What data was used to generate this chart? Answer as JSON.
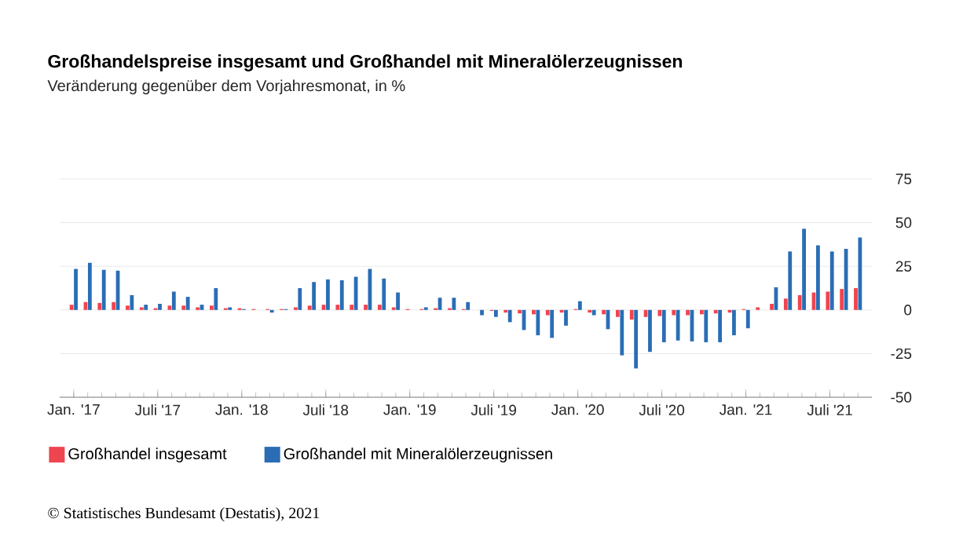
{
  "chart_data": {
    "type": "bar",
    "title": "Großhandelspreise insgesamt und Großhandel mit Mineralölerzeugnissen",
    "subtitle": "Veränderung gegenüber dem Vorjahresmonat, in %",
    "categories": [
      "Jan. '17",
      null,
      null,
      null,
      null,
      null,
      "Juli '17",
      null,
      null,
      null,
      null,
      null,
      "Jan. '18",
      null,
      null,
      null,
      null,
      null,
      "Juli '18",
      null,
      null,
      null,
      null,
      null,
      "Jan. '19",
      null,
      null,
      null,
      null,
      null,
      "Juli '19",
      null,
      null,
      null,
      null,
      null,
      "Jan. '20",
      null,
      null,
      null,
      null,
      null,
      "Juli '20",
      null,
      null,
      null,
      null,
      null,
      "Jan. '21",
      null,
      null,
      null,
      null,
      null,
      "Juli '21",
      null,
      null
    ],
    "series": [
      {
        "name": "Großhandel insgesamt",
        "color": "#ee4550",
        "values": [
          3,
          4.5,
          4,
          4.5,
          2.5,
          1.5,
          1,
          2.5,
          2.5,
          1.5,
          2.5,
          1,
          1,
          0.5,
          0.5,
          0.5,
          1.5,
          2.5,
          3,
          3,
          3,
          3,
          3,
          1.5,
          0.5,
          0.5,
          1,
          1,
          0.5,
          0,
          -0.5,
          -1.5,
          -2,
          -2.5,
          -3,
          -1.5,
          0.5,
          -1.5,
          -2.5,
          -4,
          -5.5,
          -4,
          -3.5,
          -3,
          -3,
          -2.5,
          -2,
          -1.5,
          0.5,
          1.5,
          3.5,
          6.5,
          8.5,
          10,
          10.5,
          12,
          12.5
        ]
      },
      {
        "name": "Großhandel mit Mineralölerzeugnissen",
        "color": "#2a6db5",
        "values": [
          23.5,
          27,
          23,
          22.5,
          8.5,
          3,
          3.5,
          10.5,
          7.5,
          3,
          12.5,
          1.5,
          0.5,
          0,
          -1.5,
          0.5,
          12.5,
          16,
          17.5,
          17,
          19,
          23.5,
          18,
          10,
          0,
          1.5,
          7,
          7,
          4.5,
          -3,
          -4,
          -7,
          -11.5,
          -14.5,
          -16,
          -9,
          5,
          -3,
          -11,
          -26,
          -33.5,
          -24,
          -18.5,
          -17.5,
          -18,
          -18.5,
          -18.5,
          -14.5,
          -10.5,
          0,
          13,
          33.5,
          46.5,
          37,
          33.5,
          35,
          41.5
        ]
      }
    ],
    "ylim": [
      -50,
      75
    ],
    "yticks": [
      -50,
      -25,
      0,
      25,
      50,
      75
    ],
    "grid": "y",
    "legend": "bottom",
    "annotations": [
      "© Statistisches Bundesamt (Destatis), 2021"
    ]
  }
}
